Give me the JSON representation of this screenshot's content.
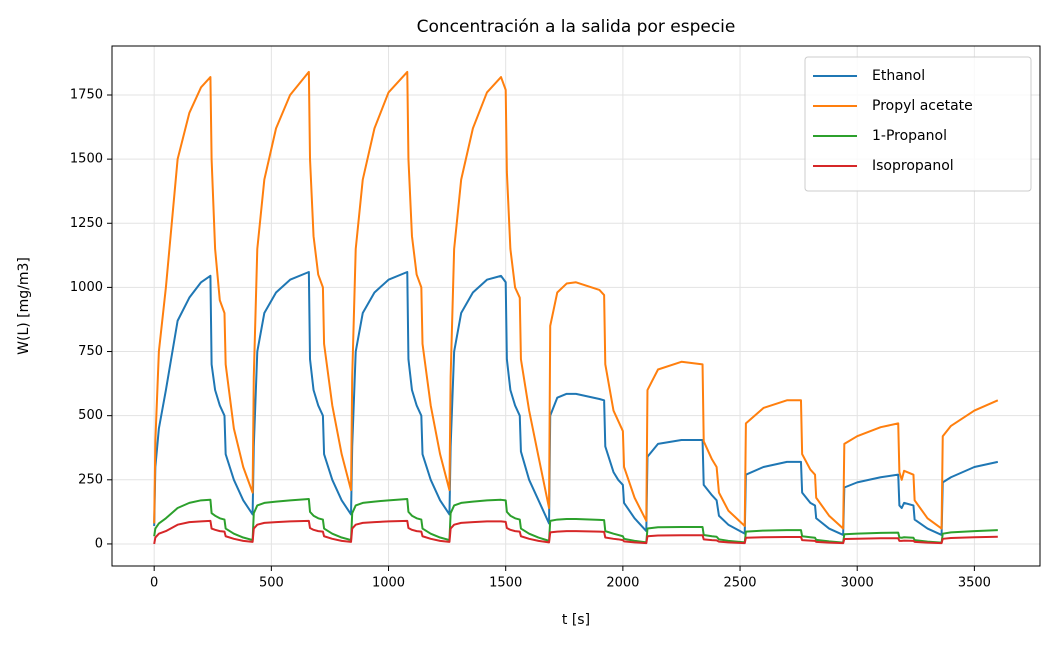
{
  "chart_data": {
    "type": "line",
    "title": "Concentración a la salida por especie",
    "x_label": "t [s]",
    "y_label": "W(L) [mg/m3]",
    "xlim": [
      -180,
      3780
    ],
    "ylim": [
      -86,
      1941
    ],
    "xticks": [
      0,
      500,
      1000,
      1500,
      2000,
      2500,
      3000,
      3500
    ],
    "yticks": [
      0,
      250,
      500,
      750,
      1000,
      1250,
      1500,
      1750
    ],
    "grid": true,
    "legend": "upper right",
    "x": [
      0,
      5,
      20,
      50,
      100,
      150,
      200,
      240,
      245,
      260,
      280,
      300,
      305,
      340,
      380,
      420,
      425,
      440,
      470,
      520,
      580,
      660,
      665,
      680,
      700,
      720,
      725,
      760,
      800,
      840,
      845,
      860,
      890,
      940,
      1000,
      1080,
      1085,
      1100,
      1120,
      1140,
      1145,
      1180,
      1220,
      1260,
      1265,
      1280,
      1310,
      1360,
      1420,
      1480,
      1500,
      1505,
      1520,
      1540,
      1560,
      1565,
      1600,
      1640,
      1685,
      1690,
      1720,
      1760,
      1800,
      1900,
      1920,
      1925,
      1960,
      1980,
      2000,
      2005,
      2050,
      2100,
      2105,
      2150,
      2250,
      2340,
      2345,
      2380,
      2400,
      2410,
      2450,
      2520,
      2525,
      2600,
      2700,
      2760,
      2765,
      2800,
      2820,
      2825,
      2880,
      2940,
      2945,
      3000,
      3100,
      3175,
      3180,
      3190,
      3200,
      3240,
      3245,
      3300,
      3360,
      3365,
      3400,
      3500,
      3600
    ],
    "series": [
      {
        "name": "Ethanol",
        "color": "#1f77b4",
        "values": [
          70,
          300,
          450,
          600,
          870,
          960,
          1020,
          1045,
          700,
          600,
          540,
          500,
          350,
          250,
          170,
          115,
          380,
          750,
          900,
          980,
          1030,
          1060,
          720,
          600,
          540,
          500,
          350,
          250,
          170,
          115,
          380,
          750,
          900,
          980,
          1030,
          1060,
          720,
          600,
          540,
          500,
          350,
          250,
          170,
          115,
          380,
          750,
          900,
          980,
          1030,
          1045,
          1020,
          720,
          600,
          540,
          500,
          360,
          250,
          170,
          80,
          500,
          570,
          585,
          585,
          565,
          560,
          380,
          280,
          250,
          230,
          160,
          100,
          50,
          340,
          390,
          405,
          405,
          230,
          190,
          170,
          110,
          75,
          40,
          270,
          300,
          320,
          320,
          200,
          160,
          150,
          100,
          60,
          35,
          220,
          240,
          260,
          270,
          150,
          140,
          160,
          150,
          95,
          60,
          35,
          240,
          260,
          300,
          320
        ]
      },
      {
        "name": "Propyl acetate",
        "color": "#ff7f0e",
        "values": [
          80,
          400,
          750,
          1000,
          1500,
          1680,
          1780,
          1820,
          1500,
          1150,
          950,
          900,
          700,
          450,
          300,
          200,
          650,
          1150,
          1420,
          1620,
          1750,
          1840,
          1500,
          1200,
          1050,
          1000,
          780,
          540,
          350,
          210,
          650,
          1150,
          1420,
          1620,
          1760,
          1840,
          1500,
          1200,
          1050,
          1000,
          780,
          540,
          350,
          210,
          650,
          1150,
          1420,
          1620,
          1760,
          1820,
          1770,
          1450,
          1150,
          1000,
          960,
          720,
          520,
          340,
          140,
          850,
          980,
          1015,
          1020,
          990,
          970,
          700,
          520,
          480,
          440,
          300,
          180,
          90,
          600,
          680,
          710,
          700,
          400,
          330,
          300,
          200,
          130,
          70,
          470,
          530,
          560,
          560,
          350,
          290,
          270,
          180,
          110,
          60,
          390,
          420,
          455,
          470,
          280,
          250,
          285,
          270,
          170,
          100,
          60,
          420,
          460,
          520,
          560
        ]
      },
      {
        "name": "1-Propanol",
        "color": "#2ca02c",
        "values": [
          30,
          60,
          80,
          100,
          140,
          160,
          170,
          172,
          120,
          110,
          100,
          95,
          60,
          40,
          25,
          15,
          120,
          150,
          160,
          165,
          170,
          175,
          125,
          110,
          100,
          95,
          60,
          40,
          25,
          15,
          120,
          150,
          160,
          165,
          170,
          175,
          125,
          110,
          100,
          95,
          60,
          40,
          25,
          15,
          120,
          150,
          160,
          165,
          170,
          172,
          170,
          125,
          110,
          100,
          95,
          60,
          40,
          25,
          12,
          90,
          95,
          97,
          97,
          94,
          93,
          50,
          40,
          35,
          30,
          20,
          12,
          6,
          60,
          65,
          66,
          66,
          35,
          30,
          28,
          18,
          12,
          6,
          48,
          52,
          54,
          54,
          30,
          26,
          24,
          16,
          10,
          5,
          38,
          40,
          43,
          44,
          25,
          24,
          26,
          24,
          15,
          9,
          5,
          40,
          45,
          50,
          54
        ]
      },
      {
        "name": "Isopropanol",
        "color": "#d62728",
        "values": [
          0,
          25,
          40,
          50,
          75,
          85,
          88,
          90,
          60,
          55,
          50,
          48,
          30,
          20,
          12,
          8,
          60,
          75,
          82,
          85,
          88,
          90,
          62,
          55,
          50,
          48,
          30,
          20,
          12,
          8,
          60,
          75,
          82,
          85,
          88,
          90,
          62,
          55,
          50,
          48,
          30,
          20,
          12,
          8,
          60,
          75,
          82,
          85,
          88,
          88,
          86,
          62,
          55,
          50,
          48,
          30,
          20,
          12,
          6,
          45,
          48,
          50,
          50,
          48,
          47,
          25,
          20,
          18,
          15,
          10,
          6,
          3,
          30,
          33,
          34,
          34,
          18,
          15,
          14,
          9,
          6,
          3,
          24,
          26,
          27,
          27,
          15,
          13,
          12,
          8,
          5,
          3,
          19,
          20,
          22,
          22,
          12,
          12,
          13,
          12,
          8,
          5,
          3,
          20,
          23,
          26,
          28
        ]
      }
    ]
  }
}
